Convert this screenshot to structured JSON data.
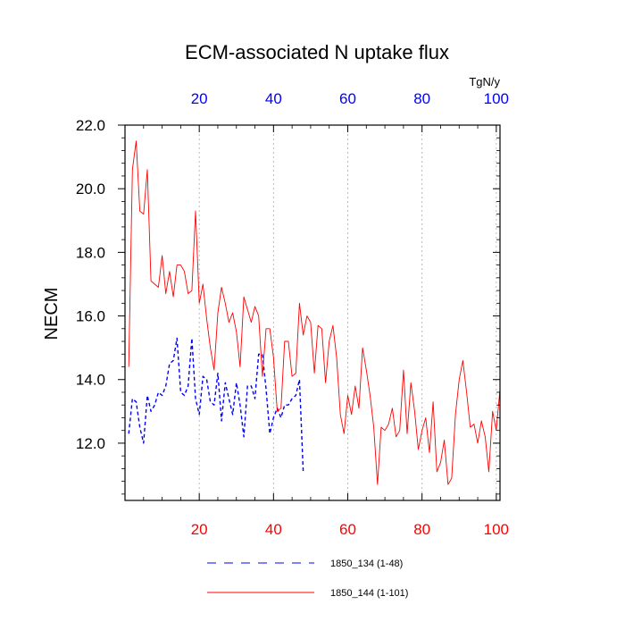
{
  "chart_data": {
    "type": "line",
    "title": "ECM-associated N uptake flux",
    "ylabel": "NECM",
    "top_axis_unit": "TgN/y",
    "xlim": [
      0,
      101
    ],
    "ylim": [
      10.2,
      22.0
    ],
    "yticks": [
      "12.0",
      "14.0",
      "16.0",
      "18.0",
      "20.0",
      "22.0"
    ],
    "xticks_bottom": [
      "20",
      "40",
      "60",
      "80",
      "100"
    ],
    "xticks_top": [
      "20",
      "40",
      "60",
      "80",
      "100"
    ],
    "grid": "vertical dotted",
    "legend_position": "bottom",
    "colors": {
      "bottom_ticks": "#ff0000",
      "top_ticks": "#0000ff",
      "axis": "#000000"
    },
    "series": [
      {
        "name": "1850_134 (1-48)",
        "color": "#0000ff",
        "style": "dashed",
        "x": [
          1,
          2,
          3,
          4,
          5,
          6,
          7,
          8,
          9,
          10,
          11,
          12,
          13,
          14,
          15,
          16,
          17,
          18,
          19,
          20,
          21,
          22,
          23,
          24,
          25,
          26,
          27,
          28,
          29,
          30,
          31,
          32,
          33,
          34,
          35,
          36,
          37,
          38,
          39,
          40,
          41,
          42,
          43,
          44,
          45,
          46,
          47,
          48
        ],
        "y": [
          12.3,
          13.4,
          13.3,
          12.5,
          12.0,
          13.5,
          13.0,
          13.2,
          13.6,
          13.5,
          13.8,
          14.5,
          14.6,
          15.3,
          13.6,
          13.5,
          13.8,
          15.3,
          13.4,
          12.9,
          14.1,
          14.0,
          13.3,
          13.2,
          14.2,
          12.7,
          13.9,
          13.4,
          12.9,
          13.9,
          13.2,
          12.2,
          13.8,
          13.8,
          13.4,
          14.8,
          14.8,
          13.7,
          12.3,
          12.8,
          13.1,
          12.8,
          13.2,
          13.2,
          13.4,
          13.5,
          14.0,
          11.1
        ]
      },
      {
        "name": "1850_144 (1-101)",
        "color": "#ff0000",
        "style": "solid",
        "x": [
          1,
          2,
          3,
          4,
          5,
          6,
          7,
          8,
          9,
          10,
          11,
          12,
          13,
          14,
          15,
          16,
          17,
          18,
          19,
          20,
          21,
          22,
          23,
          24,
          25,
          26,
          27,
          28,
          29,
          30,
          31,
          32,
          33,
          34,
          35,
          36,
          37,
          38,
          39,
          40,
          41,
          42,
          43,
          44,
          45,
          46,
          47,
          48,
          49,
          50,
          51,
          52,
          53,
          54,
          55,
          56,
          57,
          58,
          59,
          60,
          61,
          62,
          63,
          64,
          65,
          66,
          67,
          68,
          69,
          70,
          71,
          72,
          73,
          74,
          75,
          76,
          77,
          78,
          79,
          80,
          81,
          82,
          83,
          84,
          85,
          86,
          87,
          88,
          89,
          90,
          91,
          92,
          93,
          94,
          95,
          96,
          97,
          98,
          99,
          100,
          101
        ],
        "y": [
          14.4,
          20.6,
          21.5,
          19.3,
          19.2,
          20.6,
          17.1,
          17.0,
          16.9,
          17.9,
          16.7,
          17.4,
          16.6,
          17.6,
          17.6,
          17.4,
          16.7,
          16.8,
          19.3,
          16.4,
          17.0,
          15.9,
          15.0,
          14.3,
          16.1,
          16.9,
          16.4,
          15.8,
          16.1,
          15.5,
          14.4,
          16.6,
          16.2,
          15.8,
          16.3,
          16.0,
          14.1,
          15.6,
          15.6,
          14.7,
          13.0,
          13.1,
          15.2,
          15.2,
          14.1,
          14.2,
          16.4,
          15.4,
          16.0,
          15.8,
          14.2,
          15.7,
          15.6,
          13.9,
          15.2,
          15.7,
          14.7,
          12.9,
          12.3,
          13.5,
          12.9,
          13.8,
          13.1,
          15.0,
          14.3,
          13.5,
          12.5,
          10.7,
          12.5,
          12.4,
          12.6,
          13.1,
          12.2,
          12.4,
          14.3,
          12.3,
          13.9,
          13.0,
          11.8,
          12.4,
          12.8,
          11.7,
          13.3,
          11.1,
          11.4,
          12.1,
          10.7,
          10.9,
          12.9,
          14.0,
          14.6,
          13.6,
          12.5,
          12.6,
          12.0,
          12.7,
          12.2,
          11.1,
          13.0,
          12.4,
          13.7
        ]
      }
    ]
  }
}
